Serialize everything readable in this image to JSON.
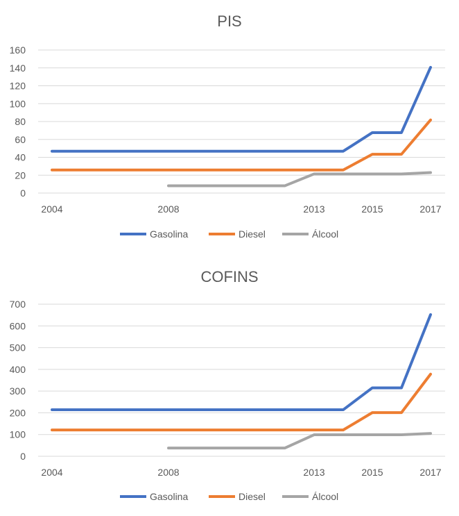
{
  "colors": {
    "Gasolina": "#4472C4",
    "Diesel": "#ED7D31",
    "Álcool": "#A5A5A5"
  },
  "chart_data": [
    {
      "type": "line",
      "title": "PIS",
      "categories": [
        "2004",
        "2005",
        "2006",
        "2007",
        "2008",
        "2009",
        "2010",
        "2011",
        "2012",
        "2013",
        "2014",
        "2015",
        "2016",
        "2017"
      ],
      "shown_category_labels": [
        "2004",
        "2008",
        "2013",
        "2015",
        "2017"
      ],
      "ylim": [
        0,
        160
      ],
      "yticks": [
        0,
        20,
        40,
        60,
        80,
        100,
        120,
        140,
        160
      ],
      "grid": true,
      "legend": "bottom",
      "series": [
        {
          "name": "Gasolina",
          "values": [
            46.8,
            46.8,
            46.8,
            46.8,
            46.8,
            46.8,
            46.8,
            46.8,
            46.8,
            46.8,
            46.8,
            67.6,
            67.6,
            140.6
          ]
        },
        {
          "name": "Diesel",
          "values": [
            25.8,
            25.8,
            25.8,
            25.8,
            25.8,
            25.8,
            25.8,
            25.8,
            25.8,
            25.8,
            25.8,
            43.4,
            43.4,
            81.8
          ]
        },
        {
          "name": "Álcool",
          "values": [
            null,
            null,
            null,
            null,
            8.2,
            8.2,
            8.2,
            8.2,
            8.2,
            21.4,
            21.4,
            21.4,
            21.4,
            22.9
          ]
        }
      ]
    },
    {
      "type": "line",
      "title": "COFINS",
      "categories": [
        "2004",
        "2005",
        "2006",
        "2007",
        "2008",
        "2009",
        "2010",
        "2011",
        "2012",
        "2013",
        "2014",
        "2015",
        "2016",
        "2017"
      ],
      "shown_category_labels": [
        "2004",
        "2008",
        "2013",
        "2015",
        "2017"
      ],
      "ylim": [
        0,
        700
      ],
      "yticks": [
        0,
        100,
        200,
        300,
        400,
        500,
        600,
        700
      ],
      "grid": true,
      "legend": "bottom",
      "series": [
        {
          "name": "Gasolina",
          "values": [
            214,
            214,
            214,
            214,
            214,
            214,
            214,
            214,
            214,
            214,
            214,
            315,
            315,
            652
          ]
        },
        {
          "name": "Diesel",
          "values": [
            121,
            121,
            121,
            121,
            121,
            121,
            121,
            121,
            121,
            121,
            121,
            201,
            201,
            378
          ]
        },
        {
          "name": "Álcool",
          "values": [
            null,
            null,
            null,
            null,
            38,
            38,
            38,
            38,
            38,
            99,
            99,
            99,
            99,
            105
          ]
        }
      ]
    }
  ]
}
